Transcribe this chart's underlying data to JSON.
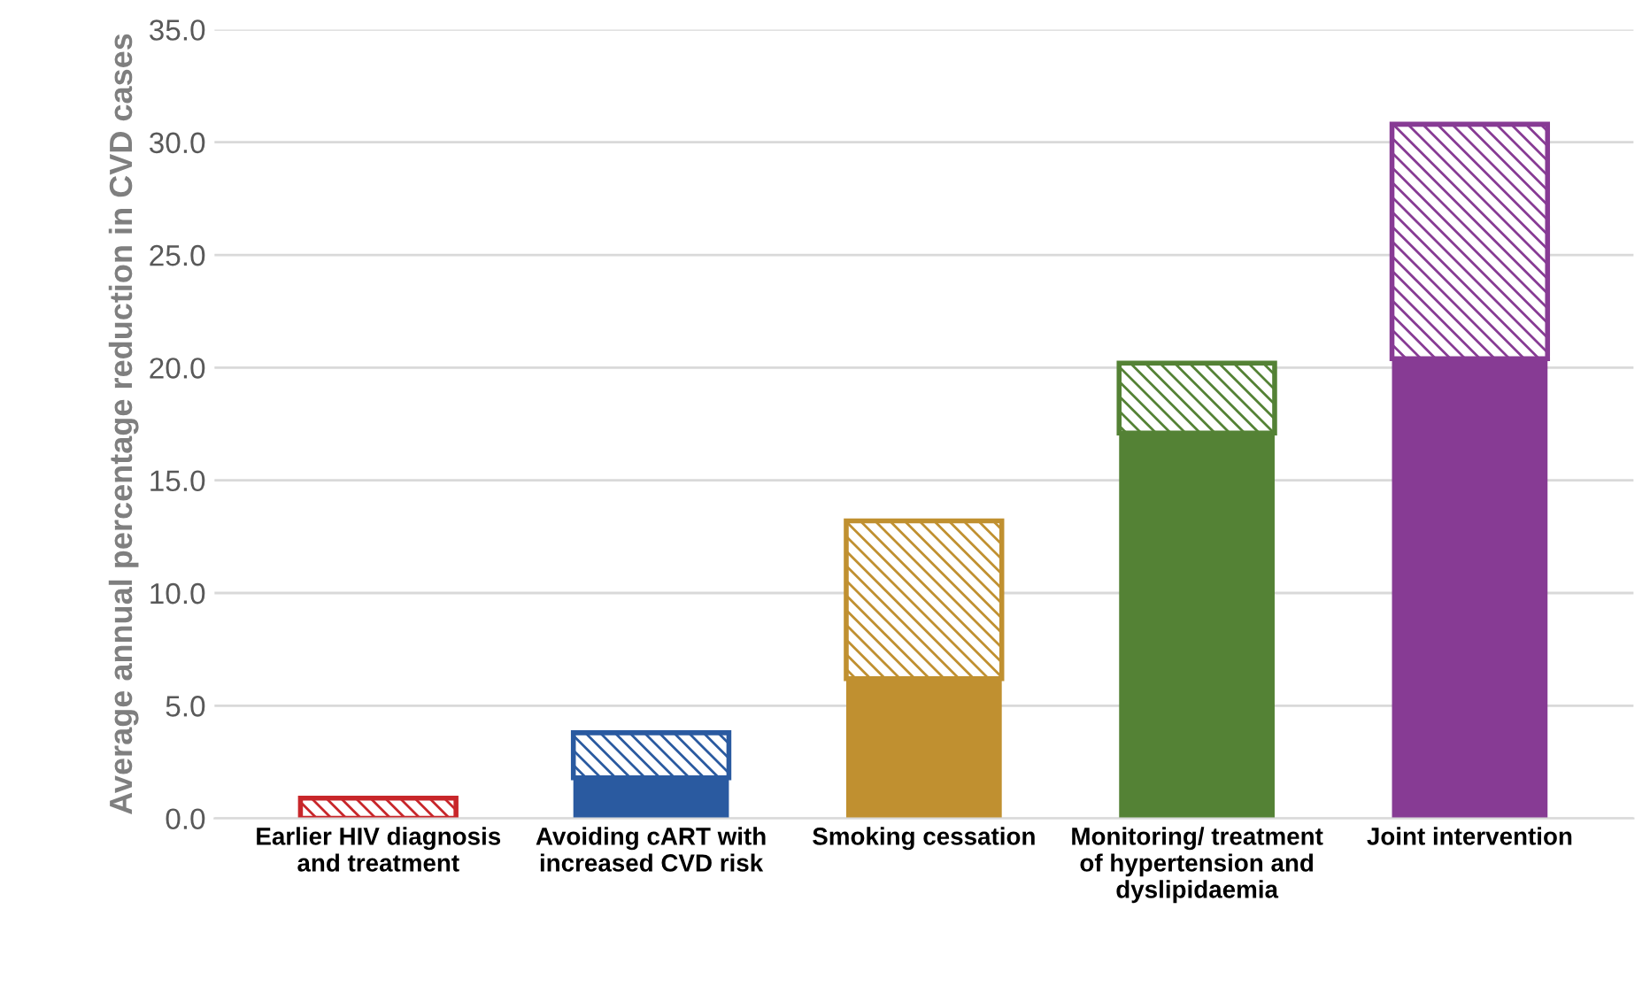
{
  "chart_data": {
    "type": "bar",
    "stacked": true,
    "ylabel": "Average annual percentage reduction in CVD cases",
    "categories": [
      "Earlier HIV diagnosis and treatment",
      "Avoiding cART with increased CVD risk",
      "Smoking cessation",
      "Monitoring/ treatment of hypertension and dyslipidaemia",
      "Joint intervention"
    ],
    "series": [
      {
        "colors": [
          "#c8262a",
          "#2a5aa0",
          "#c09030",
          "#548235",
          "#873b94"
        ],
        "values": [
          0.0,
          1.8,
          6.2,
          17.1,
          20.4
        ]
      },
      {
        "colors": [
          "#c8262a",
          "#2a5aa0",
          "#c09030",
          "#548235",
          "#873b94"
        ],
        "values": [
          0.9,
          2.0,
          7.0,
          3.1,
          10.4
        ]
      }
    ],
    "ylim": [
      0,
      35
    ],
    "yticks": [
      {
        "value": 0,
        "label": "0.0"
      },
      {
        "value": 5,
        "label": "5.0"
      },
      {
        "value": 10,
        "label": "10.0"
      },
      {
        "value": 15,
        "label": "15.0"
      },
      {
        "value": 20,
        "label": "20.0"
      },
      {
        "value": 25,
        "label": "25.0"
      },
      {
        "value": 30,
        "label": "30.0"
      },
      {
        "value": 35,
        "label": "35.0"
      }
    ],
    "grid": "y",
    "legend": false
  }
}
